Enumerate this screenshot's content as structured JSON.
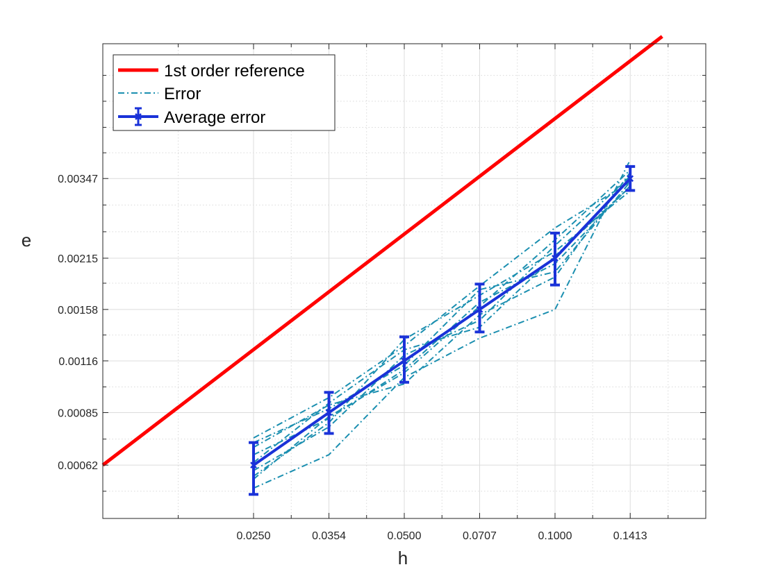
{
  "chart_data": {
    "type": "line",
    "xlabel": "h",
    "ylabel": "e",
    "x_scale": "log",
    "y_scale": "log",
    "grid": true,
    "minor_grid": true,
    "legend_position": "top-left",
    "xlim": [
      0.0125,
      0.2
    ],
    "ylim": [
      0.00045,
      0.0078
    ],
    "x_ticks": [
      0.025,
      0.03536,
      0.05,
      0.07071,
      0.1,
      0.1413
    ],
    "x_tick_labels": [
      "0.0250",
      "0.0354",
      "0.0500",
      "0.0707",
      "0.1000",
      "0.1413"
    ],
    "y_ticks": [
      0.00062,
      0.00085,
      0.00116,
      0.00158,
      0.00215,
      0.00347
    ],
    "y_tick_labels": [
      "0.00062",
      "0.00085",
      "0.00116",
      "0.00158",
      "0.00215",
      "0.00347"
    ],
    "x": [
      0.025,
      0.03536,
      0.05,
      0.07071,
      0.1,
      0.1413
    ],
    "reference": {
      "name": "1st order reference",
      "color": "#ff0000",
      "x": [
        0.0125,
        0.1637
      ],
      "y": [
        0.00062,
        0.00815
      ]
    },
    "error_runs": {
      "name": "Error",
      "color": "#1b8fb0",
      "runs": [
        [
          0.00062,
          0.00085,
          0.00116,
          0.00158,
          0.00215,
          0.00347
        ],
        [
          0.00073,
          0.00093,
          0.00127,
          0.00182,
          0.00258,
          0.0034
        ],
        [
          0.00054,
          0.00066,
          0.00105,
          0.00133,
          0.00158,
          0.00388
        ],
        [
          0.00058,
          0.0008,
          0.00132,
          0.00172,
          0.00224,
          0.00322
        ],
        [
          0.00069,
          0.00089,
          0.00101,
          0.00153,
          0.00192,
          0.0036
        ],
        [
          0.00066,
          0.00082,
          0.0011,
          0.00165,
          0.00208,
          0.00332
        ],
        [
          0.0006,
          0.00078,
          0.0012,
          0.00148,
          0.00232,
          0.00352
        ],
        [
          0.00071,
          0.00087,
          0.00113,
          0.00178,
          0.00198,
          0.0034
        ],
        [
          0.00063,
          0.0009,
          0.00124,
          0.00142,
          0.00218,
          0.0033
        ],
        [
          0.00057,
          0.00083,
          0.00108,
          0.00161,
          0.0024,
          0.00365
        ]
      ]
    },
    "average": {
      "name": "Average error",
      "color": "#1a32d8",
      "y": [
        0.00062,
        0.00085,
        0.00116,
        0.00158,
        0.00215,
        0.00347
      ],
      "err_low": [
        0.00052,
        0.00075,
        0.00102,
        0.00138,
        0.00183,
        0.00323
      ],
      "err_high": [
        0.00071,
        0.00096,
        0.00134,
        0.00184,
        0.0025,
        0.00373
      ]
    }
  }
}
